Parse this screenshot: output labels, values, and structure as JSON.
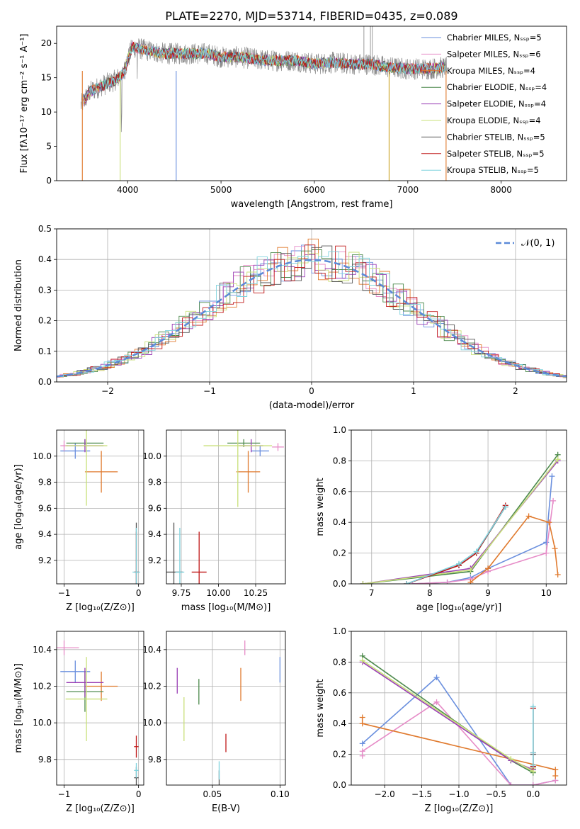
{
  "figure": {
    "title": "PLATE=2270, MJD=53714, FIBERID=0435, z=0.089"
  },
  "model_colors": [
    "#6a8fde",
    "#e68bc7",
    "#e07a2e",
    "#4d8a4d",
    "#9a3fb5",
    "#c9e07a",
    "#555555",
    "#c01818",
    "#7fd3de"
  ],
  "chart_data": [
    {
      "id": "spectrum",
      "type": "line",
      "title": "PLATE=2270, MJD=53714, FIBERID=0435, z=0.089",
      "xlabel": "wavelength [Angstrom, rest frame]",
      "ylabel": "Flux [fλ10⁻¹⁷ erg cm⁻² s⁻¹ A⁻¹]",
      "xlim": [
        3240,
        8700
      ],
      "ylim": [
        0,
        22.5
      ],
      "xticks": [
        4000,
        5000,
        6000,
        7000,
        8000
      ],
      "yticks": [
        0,
        5,
        10,
        15,
        20
      ],
      "grid": false,
      "legend_position": "upper right",
      "legend": [
        "Chabrier MILES, Nₛₛₚ=5",
        "Salpeter MILES, Nₛₛₚ=6",
        "Kroupa MILES, Nₛₛₚ=4",
        "Chabrier ELODIE, Nₛₛₚ=4",
        "Salpeter ELODIE, Nₛₛₚ=4",
        "Kroupa ELODIE, Nₛₛₚ=4",
        "Chabrier STELIB, Nₛₛₚ=5",
        "Salpeter STELIB, Nₛₛₚ=5",
        "Kroupa STELIB, Nₛₛₚ=5"
      ],
      "continuum_x": [
        3500,
        3600,
        3750,
        3850,
        3950,
        4050,
        4200,
        4400,
        4600,
        4850,
        5000,
        5200,
        5500,
        5800,
        6000,
        6200,
        6400,
        6600,
        6800,
        7000,
        7200,
        7400
      ],
      "continuum_y": [
        11,
        13,
        14,
        14.5,
        15.5,
        19.5,
        19,
        18.5,
        18.5,
        18.5,
        18,
        18,
        17.5,
        17.5,
        17,
        17.2,
        17,
        17,
        16.5,
        16.3,
        16.3,
        16.5
      ],
      "data_x_range": [
        3500,
        7420
      ],
      "model_x_range": [
        3520,
        7400
      ]
    },
    {
      "id": "residuals",
      "type": "histogram",
      "xlabel": "(data-model)/error",
      "ylabel": "Normed distribution",
      "xlim": [
        -2.5,
        2.5
      ],
      "ylim": [
        0,
        0.5
      ],
      "xticks": [
        -2,
        -1,
        0,
        1,
        2
      ],
      "yticks": [
        0,
        0.1,
        0.2,
        0.3,
        0.4,
        0.5
      ],
      "grid": true,
      "bin_width": 0.1,
      "reference": {
        "name": "𝒩(0, 1)",
        "mean": 0,
        "sigma": 1
      },
      "legend_position": "upper right"
    },
    {
      "id": "age-vs-Z",
      "type": "scatter",
      "xlabel": "Z [log₁₀(Z/Z⊙)]",
      "ylabel": "age  [log₁₀(age/yr)]",
      "xlim": [
        -1.1,
        0.07
      ],
      "ylim": [
        9.02,
        10.2
      ],
      "xticks": [
        -1,
        0
      ],
      "yticks": [
        9.2,
        9.4,
        9.6,
        9.8,
        10.0
      ],
      "grid": true,
      "points": [
        {
          "x": -0.85,
          "xerr": 0.2,
          "y": 10.04,
          "yerr": 0.06
        },
        {
          "x": -1.0,
          "xerr": 0.05,
          "y": 10.08,
          "yerr": 0.04
        },
        {
          "x": -0.5,
          "xerr": 0.22,
          "y": 9.88,
          "yerr": 0.16
        },
        {
          "x": -0.72,
          "xerr": 0.25,
          "y": 10.1,
          "yerr": 0.03
        },
        {
          "x": -0.72,
          "xerr": 0.25,
          "y": 10.08,
          "yerr": 0.05
        },
        {
          "x": -0.7,
          "xerr": 0.28,
          "y": 10.08,
          "yerr": 0.46
        },
        {
          "x": -0.03,
          "xerr": 0.03,
          "y": 9.11,
          "yerr": 0.38
        },
        {
          "x": -0.03,
          "xerr": 0.03,
          "y": 9.11,
          "yerr": 0.31
        },
        {
          "x": -0.03,
          "xerr": 0.05,
          "y": 9.11,
          "yerr": 0.34
        }
      ]
    },
    {
      "id": "age-vs-mass",
      "type": "scatter",
      "xlabel": "mass [log₁₀(M/M⊙)]",
      "ylabel": "",
      "xlim": [
        9.65,
        10.45
      ],
      "ylim": [
        9.02,
        10.2
      ],
      "xticks": [
        9.75,
        10.0,
        10.25
      ],
      "yticks": [
        9.2,
        9.4,
        9.6,
        9.8,
        10.0
      ],
      "grid": true,
      "points": [
        {
          "x": 10.28,
          "xerr": 0.06,
          "y": 10.04,
          "yerr": 0.04
        },
        {
          "x": 10.4,
          "xerr": 0.04,
          "y": 10.07,
          "yerr": 0.03
        },
        {
          "x": 10.2,
          "xerr": 0.08,
          "y": 9.88,
          "yerr": 0.16
        },
        {
          "x": 10.17,
          "xerr": 0.11,
          "y": 10.1,
          "yerr": 0.03
        },
        {
          "x": 10.22,
          "xerr": 0.08,
          "y": 10.08,
          "yerr": 0.05
        },
        {
          "x": 10.13,
          "xerr": 0.23,
          "y": 10.08,
          "yerr": 0.47
        },
        {
          "x": 9.7,
          "xerr": 0.06,
          "y": 9.11,
          "yerr": 0.38
        },
        {
          "x": 9.87,
          "xerr": 0.05,
          "y": 9.11,
          "yerr": 0.31
        },
        {
          "x": 9.74,
          "xerr": 0.03,
          "y": 9.11,
          "yerr": 0.34
        }
      ]
    },
    {
      "id": "weight-vs-age",
      "type": "line",
      "xlabel": "age  [log₁₀(age/yr)]",
      "ylabel": "mass weight",
      "xlim": [
        6.65,
        10.35
      ],
      "ylim": [
        0,
        1
      ],
      "xticks": [
        7,
        8,
        9,
        10
      ],
      "yticks": [
        0,
        0.2,
        0.4,
        0.6,
        0.8,
        1.0
      ],
      "grid": true,
      "series": [
        {
          "x": [
            7.7,
            8.3,
            8.7,
            9.0,
            10.0,
            10.1
          ],
          "y": [
            0.0,
            0.01,
            0.04,
            0.1,
            0.27,
            0.7
          ]
        },
        {
          "x": [
            7.7,
            8.3,
            8.7,
            9.0,
            10.0,
            10.12
          ],
          "y": [
            0.0,
            0.01,
            0.03,
            0.08,
            0.2,
            0.54
          ]
        },
        {
          "x": [
            8.7,
            9.0,
            9.7,
            10.05,
            10.15,
            10.2
          ],
          "y": [
            0.01,
            0.1,
            0.44,
            0.4,
            0.23,
            0.06
          ]
        },
        {
          "x": [
            6.85,
            8.7,
            10.2
          ],
          "y": [
            0.0,
            0.08,
            0.84
          ]
        },
        {
          "x": [
            6.85,
            8.7,
            10.2
          ],
          "y": [
            0.0,
            0.1,
            0.8
          ]
        },
        {
          "x": [
            6.85,
            8.7,
            10.2
          ],
          "y": [
            0.0,
            0.09,
            0.81
          ]
        },
        {
          "x": [
            7.6,
            8.5,
            8.8,
            9.3
          ],
          "y": [
            0.0,
            0.12,
            0.2,
            0.5
          ]
        },
        {
          "x": [
            7.6,
            8.5,
            8.8,
            9.3
          ],
          "y": [
            0.0,
            0.12,
            0.2,
            0.51
          ]
        },
        {
          "x": [
            7.6,
            8.5,
            8.8,
            9.3
          ],
          "y": [
            0.0,
            0.13,
            0.21,
            0.5
          ]
        }
      ]
    },
    {
      "id": "mass-vs-Z",
      "type": "scatter",
      "xlabel": "Z [log₁₀(Z/Z⊙)]",
      "ylabel": "mass [log₁₀(M/M⊙)]",
      "xlim": [
        -1.1,
        0.07
      ],
      "ylim": [
        9.66,
        10.5
      ],
      "xticks": [
        -1,
        0
      ],
      "yticks": [
        9.8,
        10.0,
        10.2,
        10.4
      ],
      "grid": true,
      "points": [
        {
          "x": -0.85,
          "xerr": 0.2,
          "y": 10.28,
          "yerr": 0.06
        },
        {
          "x": -1.0,
          "xerr": 0.2,
          "y": 10.41,
          "yerr": 0.04
        },
        {
          "x": -0.5,
          "xerr": 0.22,
          "y": 10.2,
          "yerr": 0.08
        },
        {
          "x": -0.72,
          "xerr": 0.25,
          "y": 10.17,
          "yerr": 0.11
        },
        {
          "x": -0.72,
          "xerr": 0.25,
          "y": 10.22,
          "yerr": 0.08
        },
        {
          "x": -0.7,
          "xerr": 0.28,
          "y": 10.13,
          "yerr": 0.23
        },
        {
          "x": -0.03,
          "xerr": 0.03,
          "y": 9.7,
          "yerr": 0.06
        },
        {
          "x": -0.03,
          "xerr": 0.03,
          "y": 9.87,
          "yerr": 0.06
        },
        {
          "x": -0.03,
          "xerr": 0.03,
          "y": 9.74,
          "yerr": 0.04
        }
      ]
    },
    {
      "id": "mass-vs-ebv",
      "type": "scatter",
      "xlabel": "E(B-V)",
      "ylabel": "",
      "xlim": [
        0.016,
        0.104
      ],
      "ylim": [
        9.66,
        10.5
      ],
      "xticks": [
        0.05,
        0.1
      ],
      "yticks": [
        9.8,
        10.0,
        10.2,
        10.4
      ],
      "grid": true,
      "points": [
        {
          "x": 0.1,
          "xerr": 0,
          "y": 10.29,
          "yerr": 0.07
        },
        {
          "x": 0.074,
          "xerr": 0,
          "y": 10.41,
          "yerr": 0.04
        },
        {
          "x": 0.071,
          "xerr": 0,
          "y": 10.21,
          "yerr": 0.09
        },
        {
          "x": 0.04,
          "xerr": 0,
          "y": 10.17,
          "yerr": 0.07
        },
        {
          "x": 0.024,
          "xerr": 0,
          "y": 10.23,
          "yerr": 0.07
        },
        {
          "x": 0.029,
          "xerr": 0,
          "y": 10.02,
          "yerr": 0.12
        },
        {
          "x": 0.055,
          "xerr": 0,
          "y": 9.7,
          "yerr": 0.04
        },
        {
          "x": 0.06,
          "xerr": 0,
          "y": 9.89,
          "yerr": 0.05
        },
        {
          "x": 0.055,
          "xerr": 0,
          "y": 9.74,
          "yerr": 0.05
        }
      ]
    },
    {
      "id": "weight-vs-Z",
      "type": "line",
      "xlabel": "Z [log₁₀(Z/Z⊙)]",
      "ylabel": "mass weight",
      "xlim": [
        -2.45,
        0.45
      ],
      "ylim": [
        0,
        1
      ],
      "xticks": [
        -2.0,
        -1.5,
        -1.0,
        -0.5,
        0.0
      ],
      "yticks": [
        0,
        0.2,
        0.4,
        0.6,
        0.8,
        1.0
      ],
      "grid": true,
      "series": [
        {
          "x": [
            -2.3,
            -1.3,
            -0.3,
            0.0,
            0.3
          ],
          "y": [
            0.27,
            0.7,
            0.0,
            0.0,
            0.03
          ]
        },
        {
          "x": [
            -2.3,
            -2.3,
            -1.3,
            -0.3,
            0.0,
            0.3
          ],
          "y": [
            0.19,
            0.22,
            0.54,
            0.0,
            0.0,
            0.03
          ]
        },
        {
          "x": [
            -2.3,
            -2.3,
            0.3,
            0.3
          ],
          "y": [
            0.44,
            0.4,
            0.1,
            0.06
          ]
        },
        {
          "x": [
            -2.3,
            -0.3,
            0.0,
            0.0
          ],
          "y": [
            0.84,
            0.16,
            0.08,
            0.1
          ]
        },
        {
          "x": [
            -2.3,
            -0.3,
            0.0,
            0.0
          ],
          "y": [
            0.8,
            0.16,
            0.1,
            0.12
          ]
        },
        {
          "x": [
            -2.3,
            -0.3,
            0.0,
            0.0
          ],
          "y": [
            0.81,
            0.17,
            0.09,
            0.11
          ]
        },
        {
          "x": [
            0.0,
            0.0,
            0.0
          ],
          "y": [
            0.5,
            0.2,
            0.12
          ]
        },
        {
          "x": [
            0.0,
            0.0,
            0.0
          ],
          "y": [
            0.5,
            0.21,
            0.12
          ]
        },
        {
          "x": [
            0.0,
            0.0,
            0.0
          ],
          "y": [
            0.51,
            0.21,
            0.13
          ]
        }
      ]
    }
  ]
}
